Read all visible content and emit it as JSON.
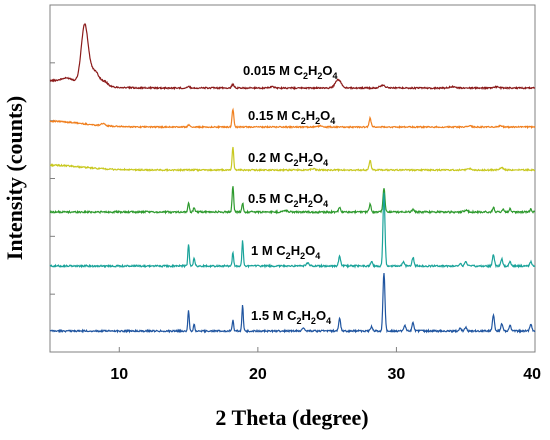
{
  "chart_data": {
    "type": "line",
    "title": "",
    "xlabel": "2 Theta (degree)",
    "ylabel": "Intensity (counts)",
    "xlim": [
      5,
      40
    ],
    "x_ticks": [
      10,
      20,
      30,
      40
    ],
    "y_tick_count": 5,
    "grid": false,
    "legend": "inline labels above each trace",
    "series": [
      {
        "name": "0.015 M  C2H2O4",
        "label_main": "0.015 M  C",
        "label_parts": [
          "0.015 M  C",
          "2",
          "H",
          "2",
          "O",
          "4"
        ],
        "color": "#8B1A1A",
        "baseline": 0.155,
        "peaks": [
          [
            6.3,
            0.03,
            0.6
          ],
          [
            7.5,
            0.48,
            0.35
          ],
          [
            8.2,
            0.12,
            0.5
          ],
          [
            9.0,
            0.03,
            0.3
          ],
          [
            15.0,
            0.01,
            0.15
          ],
          [
            18.2,
            0.03,
            0.12
          ],
          [
            21.0,
            0.01,
            0.2
          ],
          [
            25.8,
            0.07,
            0.3
          ],
          [
            29.0,
            0.02,
            0.3
          ],
          [
            34.0,
            0.01,
            0.3
          ],
          [
            37.2,
            0.01,
            0.2
          ]
        ]
      },
      {
        "name": "0.15 M  C2H2O4",
        "label_parts": [
          "0.15 M  C",
          "2",
          "H",
          "2",
          "O",
          "4"
        ],
        "color": "#F08020",
        "baseline": 0.13,
        "peaks": [
          [
            8.8,
            0.02,
            0.2
          ],
          [
            15.0,
            0.02,
            0.1
          ],
          [
            18.2,
            0.16,
            0.09
          ],
          [
            24.5,
            0.01,
            0.2
          ],
          [
            28.1,
            0.08,
            0.1
          ],
          [
            35.3,
            0.01,
            0.2
          ],
          [
            37.5,
            0.01,
            0.2
          ]
        ]
      },
      {
        "name": "0.2 M  C2H2O4",
        "label_parts": [
          "0.2 M  C",
          "2",
          "H",
          "2",
          "O",
          "4"
        ],
        "color": "#C8C820",
        "baseline": 0.1,
        "peaks": [
          [
            18.2,
            0.19,
            0.08
          ],
          [
            24.0,
            0.01,
            0.2
          ],
          [
            28.1,
            0.08,
            0.1
          ],
          [
            35.3,
            0.01,
            0.2
          ],
          [
            37.6,
            0.02,
            0.15
          ]
        ]
      },
      {
        "name": "0.5 M  C2H2O4",
        "label_parts": [
          "0.5 M  C",
          "2",
          "H",
          "2",
          "O",
          "4"
        ],
        "color": "#2E9A2E",
        "baseline": 0.0,
        "peaks": [
          [
            15.0,
            0.06,
            0.08
          ],
          [
            15.4,
            0.03,
            0.08
          ],
          [
            18.2,
            0.17,
            0.08
          ],
          [
            18.9,
            0.06,
            0.08
          ],
          [
            22.0,
            0.01,
            0.2
          ],
          [
            25.9,
            0.03,
            0.1
          ],
          [
            28.1,
            0.05,
            0.1
          ],
          [
            29.1,
            0.16,
            0.1
          ],
          [
            31.2,
            0.02,
            0.1
          ],
          [
            35.0,
            0.01,
            0.2
          ],
          [
            37.0,
            0.03,
            0.1
          ],
          [
            37.7,
            0.02,
            0.1
          ],
          [
            38.2,
            0.02,
            0.1
          ],
          [
            39.7,
            0.02,
            0.1
          ]
        ]
      },
      {
        "name": "1 M  C2H2O4",
        "label_parts": [
          "1 M  C",
          "2",
          "H",
          "2",
          "O",
          "4"
        ],
        "color": "#1AA39A",
        "baseline": 0.0,
        "peaks": [
          [
            15.0,
            0.16,
            0.07
          ],
          [
            15.4,
            0.06,
            0.07
          ],
          [
            18.2,
            0.1,
            0.07
          ],
          [
            18.9,
            0.18,
            0.07
          ],
          [
            23.6,
            0.02,
            0.15
          ],
          [
            25.9,
            0.07,
            0.1
          ],
          [
            28.2,
            0.03,
            0.1
          ],
          [
            29.1,
            0.52,
            0.1
          ],
          [
            30.5,
            0.03,
            0.1
          ],
          [
            31.2,
            0.06,
            0.1
          ],
          [
            34.6,
            0.02,
            0.1
          ],
          [
            35.0,
            0.03,
            0.1
          ],
          [
            37.0,
            0.08,
            0.1
          ],
          [
            37.6,
            0.05,
            0.1
          ],
          [
            38.2,
            0.03,
            0.1
          ],
          [
            39.7,
            0.03,
            0.1
          ]
        ]
      },
      {
        "name": "1.5 M  C2H2O4",
        "label_parts": [
          "1.5 M  C",
          "2",
          "H",
          "2",
          "O",
          "4"
        ],
        "color": "#2055A0",
        "baseline": 0.0,
        "peaks": [
          [
            15.0,
            0.15,
            0.07
          ],
          [
            15.4,
            0.05,
            0.07
          ],
          [
            18.2,
            0.08,
            0.07
          ],
          [
            18.9,
            0.19,
            0.07
          ],
          [
            23.3,
            0.02,
            0.15
          ],
          [
            25.9,
            0.09,
            0.1
          ],
          [
            28.2,
            0.03,
            0.1
          ],
          [
            29.1,
            0.42,
            0.1
          ],
          [
            30.6,
            0.04,
            0.1
          ],
          [
            31.2,
            0.06,
            0.1
          ],
          [
            34.6,
            0.02,
            0.1
          ],
          [
            35.0,
            0.03,
            0.1
          ],
          [
            37.0,
            0.12,
            0.1
          ],
          [
            37.6,
            0.05,
            0.1
          ],
          [
            38.2,
            0.04,
            0.1
          ],
          [
            39.7,
            0.05,
            0.1
          ]
        ]
      }
    ]
  }
}
